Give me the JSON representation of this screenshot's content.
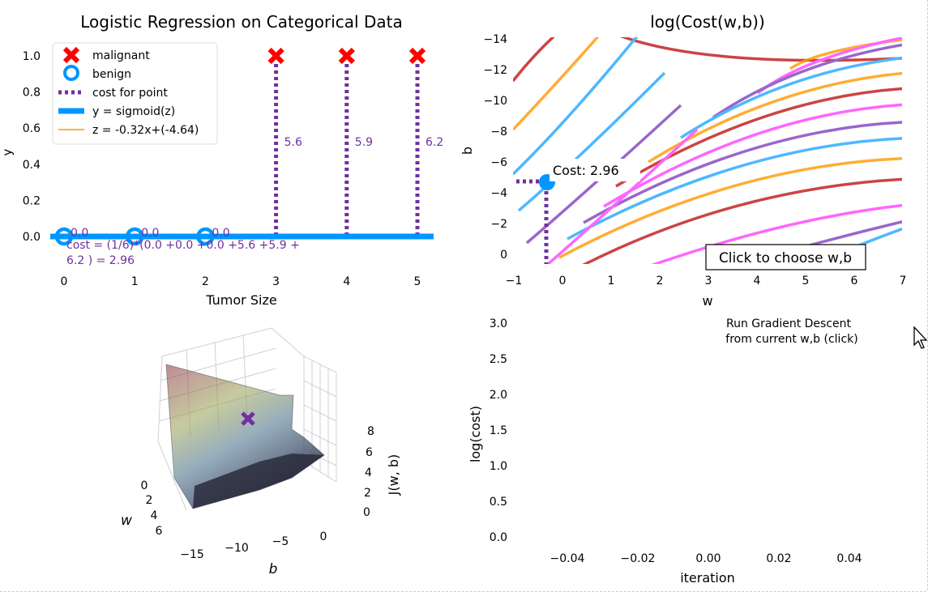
{
  "colors": {
    "purple": "#7030a0",
    "blue": "#0096ff",
    "red": "#ff0000",
    "orange": "#ff9900"
  },
  "chart_data": [
    {
      "type": "scatter",
      "title": "Logistic Regression on Categorical Data",
      "xlabel": "Tumor Size",
      "ylabel": "y",
      "xticks": [
        "0",
        "1",
        "2",
        "3",
        "4",
        "5"
      ],
      "yticks": [
        "0.0",
        "0.2",
        "0.4",
        "0.6",
        "0.8",
        "1.0"
      ],
      "points": [
        {
          "x": 0,
          "y": 0,
          "class": "benign",
          "cost": "0.0"
        },
        {
          "x": 1,
          "y": 0,
          "class": "benign",
          "cost": "0.0"
        },
        {
          "x": 2,
          "y": 0,
          "class": "benign",
          "cost": "0.0"
        },
        {
          "x": 3,
          "y": 1,
          "class": "malignant",
          "cost": "5.6"
        },
        {
          "x": 4,
          "y": 1,
          "class": "malignant",
          "cost": "5.9"
        },
        {
          "x": 5,
          "y": 1,
          "class": "malignant",
          "cost": "6.2"
        }
      ],
      "legend": [
        "malignant",
        "benign",
        "cost for point",
        "y = sigmoid(z)",
        "z = -0.32x+(-4.64)"
      ],
      "legend_position": "upper-left",
      "cost_text_line1": "cost = (1/6)*(0.0 +0.0 +0.0 +5.6 +5.9 +",
      "cost_text_line2": "6.2 ) = 2.96"
    },
    {
      "type": "contour",
      "title": "log(Cost(w,b))",
      "xlabel": "w",
      "ylabel": "b",
      "xticks": [
        "−1",
        "0",
        "1",
        "2",
        "3",
        "4",
        "5",
        "6",
        "7"
      ],
      "yticks": [
        "−14",
        "−12",
        "−10",
        "−8",
        "−6",
        "−4",
        "−2",
        "0"
      ],
      "xlim": [
        -1,
        7
      ],
      "ylim": [
        0.5,
        -14.5
      ],
      "current_point": {
        "w": -0.32,
        "b": -4.64
      },
      "annotation": "Cost: 2.96",
      "button_label": "Click to choose w,b"
    },
    {
      "type": "surface3d",
      "zlabel": "J(w, b)",
      "xlabel": "w",
      "ylabel": "b",
      "w_ticks": [
        "0",
        "2",
        "4",
        "6"
      ],
      "b_ticks": [
        "−15",
        "−10",
        "−5",
        "0"
      ],
      "z_ticks": [
        "0",
        "2",
        "4",
        "6",
        "8"
      ]
    },
    {
      "type": "line",
      "xlabel": "iteration",
      "ylabel": "log(cost)",
      "xticks": [
        "−0.04",
        "−0.02",
        "0.00",
        "0.02",
        "0.04"
      ],
      "yticks": [
        "0.0",
        "0.5",
        "1.0",
        "1.5",
        "2.0",
        "2.5",
        "3.0"
      ],
      "ylim": [
        0,
        3
      ],
      "series": [],
      "run_label_line1": "Run Gradient Descent",
      "run_label_line2": "from current w,b (click)"
    }
  ]
}
